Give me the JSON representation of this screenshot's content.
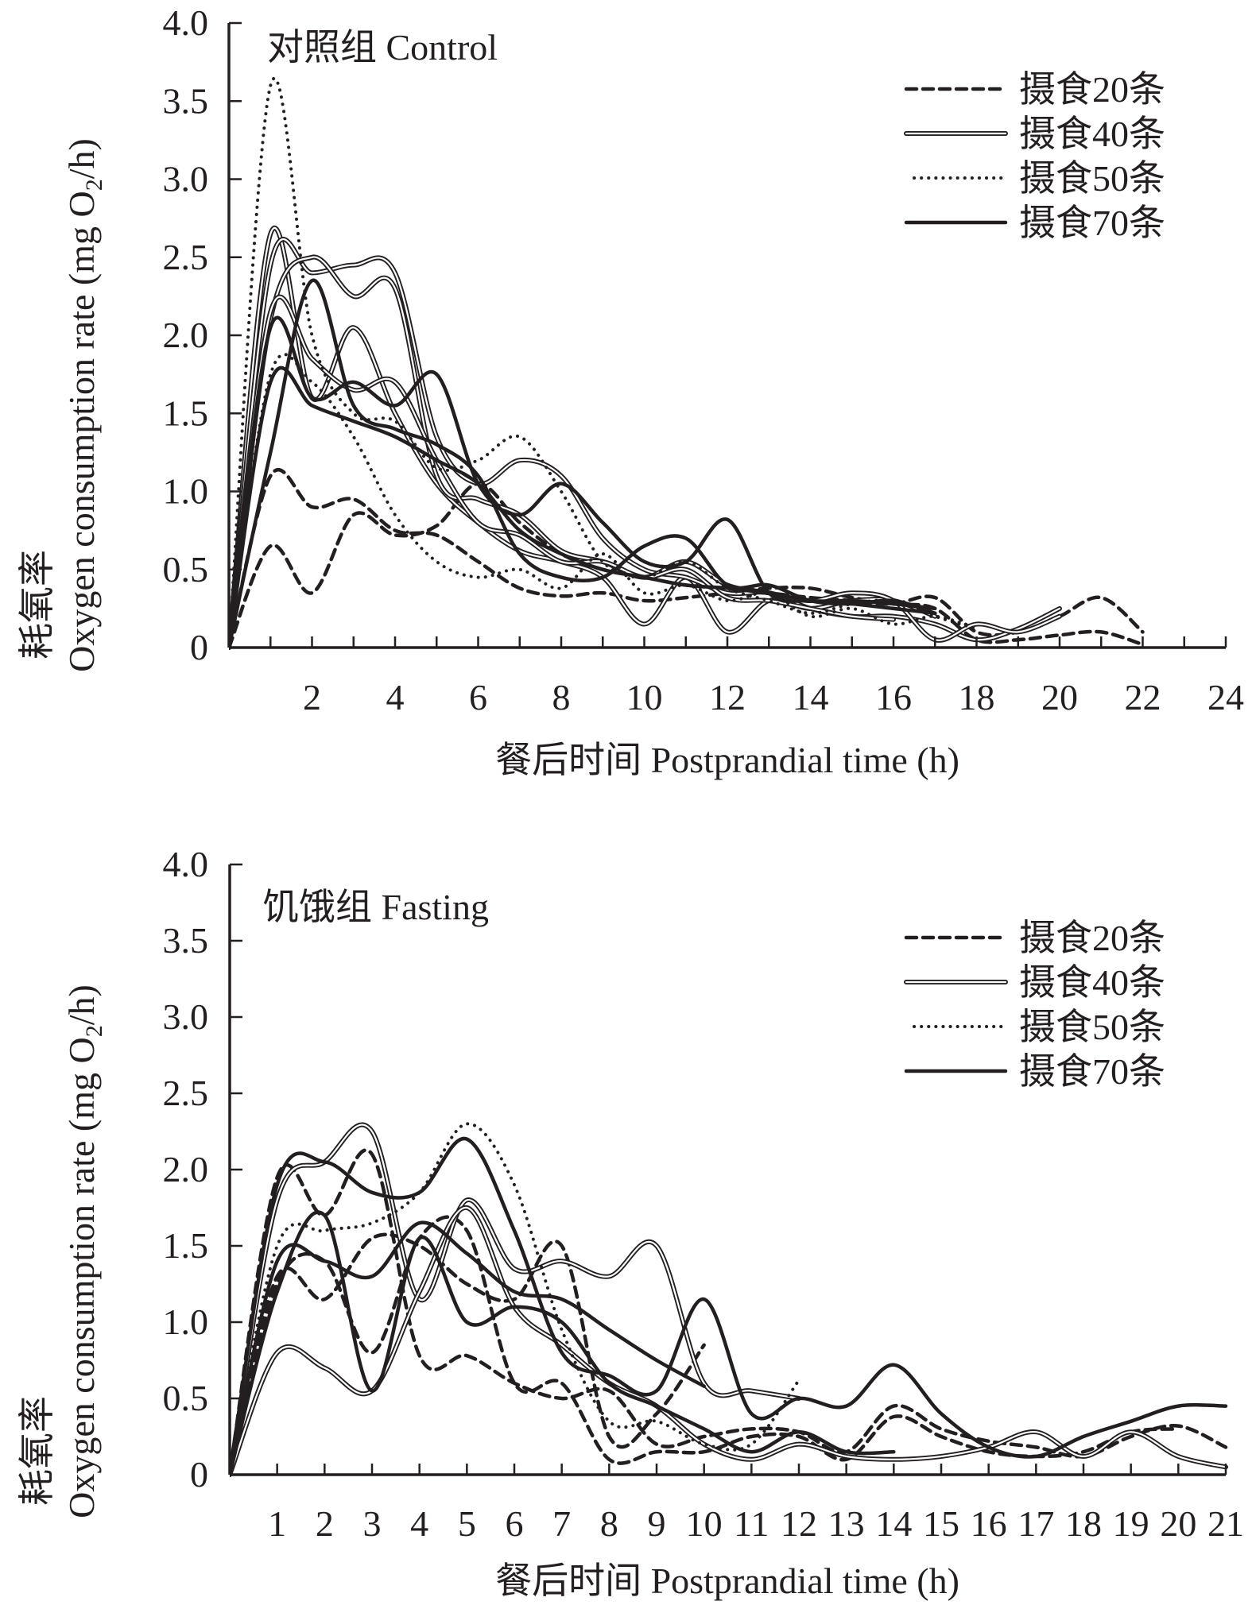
{
  "colors": {
    "ink": "#231f20",
    "background": "#ffffff"
  },
  "chart_data": [
    {
      "type": "line",
      "panel_title": "对照组 Control",
      "xlabel": "餐后时间 Postprandial time (h)",
      "ylabel_cn": "耗氧率",
      "ylabel_en": "Oxygen consumption rate (mg O",
      "ylabel_sub": "2",
      "ylabel_end": "/h)",
      "xlim": [
        0,
        24
      ],
      "ylim": [
        0,
        4.0
      ],
      "x_minor_step": 1,
      "xticks": [
        "2",
        "4",
        "6",
        "8",
        "10",
        "12",
        "14",
        "16",
        "18",
        "20",
        "22",
        "24"
      ],
      "xtick_values": [
        2,
        4,
        6,
        8,
        10,
        12,
        14,
        16,
        18,
        20,
        22,
        24
      ],
      "yticks": [
        "0",
        "0.5",
        "1.0",
        "1.5",
        "2.0",
        "2.5",
        "3.0",
        "3.5",
        "4.0"
      ],
      "ytick_values": [
        0,
        0.5,
        1.0,
        1.5,
        2.0,
        2.5,
        3.0,
        3.5,
        4.0
      ],
      "grid": false,
      "legend_position": "top-right",
      "legend": [
        "摄食20条",
        "摄食40条",
        "摄食50条",
        "摄食70条"
      ],
      "series": [
        {
          "name": "摄食20条",
          "style": "dashed",
          "x": [
            0,
            1,
            2,
            3,
            4,
            5,
            6,
            7,
            8,
            9,
            10,
            11,
            12,
            13,
            14,
            15,
            16,
            17,
            18,
            19,
            20,
            21,
            22
          ],
          "y": [
            0,
            1.1,
            0.9,
            0.95,
            0.75,
            0.72,
            0.55,
            0.38,
            0.33,
            0.35,
            0.3,
            0.32,
            0.35,
            0.38,
            0.38,
            0.32,
            0.28,
            0.25,
            0.05,
            0.05,
            0.08,
            0.1,
            0.02
          ]
        },
        {
          "name": "摄食20条",
          "style": "dashed",
          "x": [
            0,
            1,
            2,
            3,
            4,
            5,
            6,
            7,
            8,
            9,
            10,
            11,
            12,
            13,
            14,
            15,
            16,
            17,
            18,
            19,
            20,
            21,
            22
          ],
          "y": [
            0,
            0.65,
            0.35,
            0.85,
            0.72,
            0.78,
            1.05,
            0.8,
            0.6,
            0.5,
            0.45,
            0.4,
            0.38,
            0.35,
            0.32,
            0.3,
            0.28,
            0.32,
            0.1,
            0.1,
            0.2,
            0.32,
            0.1
          ]
        },
        {
          "name": "摄食40条",
          "style": "double",
          "x": [
            0,
            1,
            2,
            3,
            4,
            5,
            6,
            7,
            8,
            9,
            10,
            11,
            12,
            13,
            14,
            15,
            16,
            17
          ],
          "y": [
            0,
            2.65,
            1.6,
            2.05,
            1.5,
            1.05,
            0.8,
            0.62,
            0.55,
            0.45,
            0.15,
            0.45,
            0.1,
            0.3,
            0.25,
            0.3,
            0.3,
            0.2
          ]
        },
        {
          "name": "摄食40条",
          "style": "double",
          "x": [
            0,
            1,
            2,
            3,
            4,
            5,
            6,
            7,
            8,
            9,
            10,
            11,
            12,
            13,
            14,
            15,
            16,
            17,
            18,
            19,
            20
          ],
          "y": [
            0,
            2.45,
            2.4,
            2.45,
            2.4,
            1.35,
            1.05,
            1.2,
            1.1,
            0.7,
            0.5,
            0.45,
            0.35,
            0.35,
            0.25,
            0.2,
            0.2,
            0.15,
            0.05,
            0.12,
            0.25
          ]
        },
        {
          "name": "摄食40条",
          "style": "double",
          "x": [
            0,
            1,
            2,
            3,
            4,
            5,
            6,
            7,
            8,
            9,
            10,
            11,
            12,
            13,
            14,
            15,
            16,
            17,
            18,
            19,
            20
          ],
          "y": [
            0,
            2.1,
            2.5,
            2.25,
            2.3,
            1.1,
            0.95,
            0.85,
            0.62,
            0.55,
            0.45,
            0.55,
            0.4,
            0.35,
            0.3,
            0.35,
            0.3,
            0.05,
            0.15,
            0.1,
            0.2
          ]
        },
        {
          "name": "摄食40条",
          "style": "double",
          "x": [
            0,
            1,
            2,
            3,
            4,
            5,
            6,
            7,
            8,
            9,
            10,
            11,
            12,
            13,
            14,
            15,
            16
          ],
          "y": [
            0,
            2.15,
            1.85,
            1.65,
            1.7,
            1.2,
            0.8,
            0.72,
            0.55,
            0.55,
            0.45,
            0.5,
            0.32,
            0.3,
            0.25,
            0.2,
            0.18
          ]
        },
        {
          "name": "摄食50条",
          "style": "dotted",
          "x": [
            0,
            1,
            2,
            3,
            4,
            5,
            6,
            7,
            8,
            9,
            10,
            11,
            12,
            13,
            14,
            15,
            16,
            17,
            18
          ],
          "y": [
            0,
            3.6,
            2.0,
            1.5,
            1.45,
            1.15,
            1.2,
            1.35,
            1.0,
            0.55,
            0.45,
            0.55,
            0.38,
            0.3,
            0.22,
            0.28,
            0.3,
            0.2,
            0.12
          ]
        },
        {
          "name": "摄食50条",
          "style": "dotted",
          "x": [
            0,
            1,
            2,
            3,
            4,
            5,
            6,
            7,
            8,
            9,
            10,
            11,
            12,
            13,
            14,
            15,
            16,
            17,
            18
          ],
          "y": [
            0,
            1.75,
            1.7,
            1.35,
            0.85,
            0.55,
            0.45,
            0.5,
            0.38,
            0.6,
            0.35,
            0.4,
            0.3,
            0.35,
            0.2,
            0.25,
            0.15,
            0.2,
            0.12
          ]
        },
        {
          "name": "摄食70条",
          "style": "solid",
          "x": [
            0,
            1,
            2,
            3,
            4,
            5,
            6,
            7,
            8,
            9,
            10,
            11,
            12,
            13,
            14,
            15,
            16,
            17
          ],
          "y": [
            0,
            2.05,
            1.6,
            1.7,
            1.55,
            1.75,
            1.05,
            0.85,
            1.05,
            0.8,
            0.55,
            0.55,
            0.82,
            0.35,
            0.3,
            0.3,
            0.28,
            0.25
          ]
        },
        {
          "name": "摄食70条",
          "style": "solid",
          "x": [
            0,
            1,
            2,
            3,
            4,
            5,
            6,
            7,
            8,
            9,
            10,
            11,
            12,
            13,
            14,
            15,
            16,
            17
          ],
          "y": [
            0,
            1.25,
            2.35,
            1.55,
            1.4,
            1.3,
            1.1,
            0.6,
            0.45,
            0.45,
            0.65,
            0.7,
            0.4,
            0.4,
            0.3,
            0.28,
            0.3,
            0.22
          ]
        },
        {
          "name": "摄食70条",
          "style": "solid",
          "x": [
            0,
            1,
            2,
            3,
            4,
            5,
            6,
            7,
            8,
            9,
            10,
            11,
            12,
            13,
            14,
            15,
            16,
            17
          ],
          "y": [
            0,
            1.7,
            1.55,
            1.45,
            1.35,
            1.2,
            1.05,
            0.75,
            0.6,
            0.5,
            0.45,
            0.4,
            0.38,
            0.35,
            0.3,
            0.28,
            0.25,
            0.22
          ]
        }
      ]
    },
    {
      "type": "line",
      "panel_title": "饥饿组 Fasting",
      "xlabel": "餐后时间 Postprandial time (h)",
      "ylabel_cn": "耗氧率",
      "ylabel_en": "Oxygen consumption rate (mg O",
      "ylabel_sub": "2",
      "ylabel_end": "/h)",
      "xlim": [
        0,
        21
      ],
      "ylim": [
        0,
        4.0
      ],
      "x_minor_step": 1,
      "xticks": [
        "1",
        "2",
        "3",
        "4",
        "5",
        "6",
        "7",
        "8",
        "9",
        "10",
        "11",
        "12",
        "13",
        "14",
        "15",
        "16",
        "17",
        "18",
        "19",
        "20",
        "21"
      ],
      "xtick_values": [
        1,
        2,
        3,
        4,
        5,
        6,
        7,
        8,
        9,
        10,
        11,
        12,
        13,
        14,
        15,
        16,
        17,
        18,
        19,
        20,
        21
      ],
      "yticks": [
        "0",
        "0.5",
        "1.0",
        "1.5",
        "2.0",
        "2.5",
        "3.0",
        "3.5",
        "4.0"
      ],
      "ytick_values": [
        0,
        0.5,
        1.0,
        1.5,
        2.0,
        2.5,
        3.0,
        3.5,
        4.0
      ],
      "grid": false,
      "legend_position": "top-right",
      "legend": [
        "摄食20条",
        "摄食40条",
        "摄食50条",
        "摄食70条"
      ],
      "series": [
        {
          "name": "摄食20条",
          "style": "dashed",
          "x": [
            0,
            1,
            2,
            3,
            4,
            5,
            6,
            7,
            8,
            9,
            10,
            11,
            12,
            13,
            14,
            15,
            16,
            17,
            18,
            19,
            20,
            21
          ],
          "y": [
            0,
            1.95,
            1.7,
            2.1,
            0.78,
            0.78,
            0.6,
            0.5,
            0.55,
            0.2,
            0.25,
            0.3,
            0.28,
            0.15,
            0.45,
            0.3,
            0.22,
            0.18,
            0.12,
            0.25,
            0.32,
            0.18
          ]
        },
        {
          "name": "摄食20条",
          "style": "dashed",
          "x": [
            0,
            1,
            2,
            3,
            4,
            5,
            6,
            7,
            8,
            9,
            10
          ],
          "y": [
            0,
            1.3,
            1.15,
            1.55,
            1.5,
            1.25,
            1.15,
            1.5,
            0.25,
            0.4,
            0.85
          ]
        },
        {
          "name": "摄食20条",
          "style": "dashed",
          "x": [
            0,
            1,
            2,
            3,
            4,
            5,
            6,
            7,
            8,
            9,
            10,
            11,
            12,
            13,
            14,
            15,
            16,
            17,
            18,
            19,
            20
          ],
          "y": [
            0,
            1.25,
            1.4,
            0.8,
            1.55,
            1.6,
            0.6,
            0.6,
            0.1,
            0.15,
            0.15,
            0.25,
            0.25,
            0.1,
            0.38,
            0.25,
            0.15,
            0.12,
            0.15,
            0.28,
            0.3
          ]
        },
        {
          "name": "摄食40条",
          "style": "double",
          "x": [
            0,
            1,
            2,
            3,
            4,
            5,
            6,
            7,
            8,
            9,
            10,
            11,
            12
          ],
          "y": [
            0,
            1.8,
            2.05,
            2.25,
            1.15,
            1.8,
            1.35,
            1.4,
            1.3,
            1.5,
            0.6,
            0.55,
            0.5
          ]
        },
        {
          "name": "摄食40条",
          "style": "double",
          "x": [
            0,
            1,
            2,
            3,
            4,
            5,
            6,
            7,
            8,
            9,
            10,
            11,
            12,
            13,
            14,
            15,
            16,
            17,
            18,
            19,
            20,
            21
          ],
          "y": [
            0,
            0.8,
            0.7,
            0.55,
            1.2,
            1.75,
            1.1,
            0.85,
            0.6,
            0.45,
            0.2,
            0.1,
            0.2,
            0.12,
            0.1,
            0.12,
            0.18,
            0.28,
            0.12,
            0.28,
            0.12,
            0.05
          ]
        },
        {
          "name": "摄食50条",
          "style": "dotted",
          "x": [
            0,
            1,
            2,
            3,
            4,
            5,
            6,
            7,
            8,
            9,
            10,
            11,
            12
          ],
          "y": [
            0,
            1.5,
            1.6,
            1.65,
            1.85,
            2.3,
            1.9,
            0.95,
            0.35,
            0.35,
            0.2,
            0.2,
            0.62
          ]
        },
        {
          "name": "摄食70条",
          "style": "solid",
          "x": [
            0,
            1,
            2,
            3,
            4,
            5,
            6,
            7,
            8,
            9,
            10,
            11,
            12,
            13,
            14,
            15,
            16,
            17,
            18,
            19,
            20,
            21
          ],
          "y": [
            0,
            1.9,
            2.05,
            1.85,
            1.85,
            2.2,
            1.6,
            0.8,
            0.65,
            0.55,
            1.15,
            0.4,
            0.5,
            0.45,
            0.72,
            0.4,
            0.18,
            0.12,
            0.25,
            0.35,
            0.45,
            0.45
          ]
        },
        {
          "name": "摄食70条",
          "style": "solid",
          "x": [
            0,
            1,
            2,
            3,
            4,
            5,
            6,
            7,
            8,
            9,
            10
          ],
          "y": [
            0,
            1.4,
            1.4,
            1.3,
            1.65,
            1.45,
            1.2,
            1.15,
            0.95,
            0.75,
            0.58
          ]
        },
        {
          "name": "摄食70条",
          "style": "solid",
          "x": [
            0,
            1,
            2,
            3,
            4,
            5,
            6,
            7,
            8,
            9,
            10,
            11,
            12,
            13,
            14
          ],
          "y": [
            0,
            1.2,
            1.7,
            0.55,
            1.55,
            1.0,
            1.1,
            1.0,
            0.6,
            0.45,
            0.3,
            0.15,
            0.28,
            0.15,
            0.15
          ]
        }
      ]
    }
  ]
}
